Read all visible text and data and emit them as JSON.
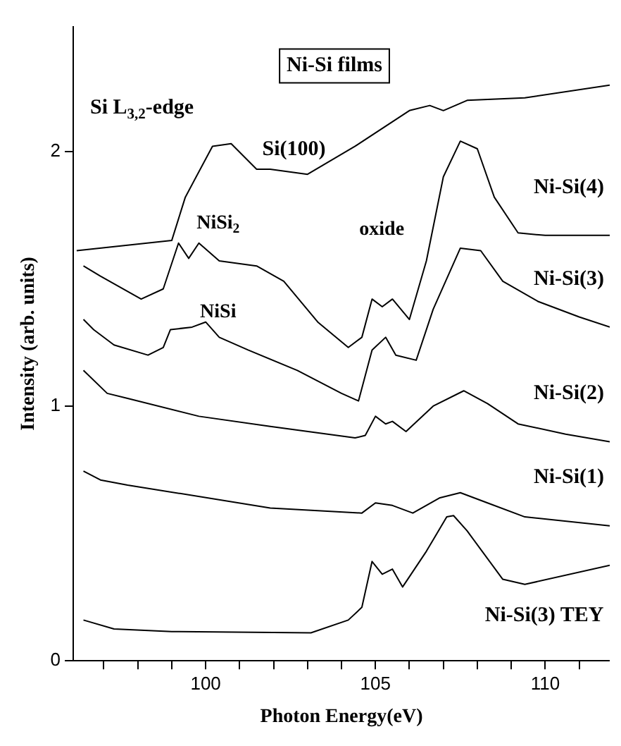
{
  "chart_data": {
    "type": "line",
    "xlabel": "Photon Energy(eV)",
    "ylabel": "Intensity (arb. units)",
    "xlim": [
      96.1,
      111.9
    ],
    "ylim": [
      0,
      2.49
    ],
    "xticks": [
      {
        "value": 97,
        "label": null
      },
      {
        "value": 98,
        "label": null
      },
      {
        "value": 99,
        "label": null
      },
      100,
      {
        "value": 101,
        "label": null
      },
      {
        "value": 102,
        "label": null
      },
      {
        "value": 103,
        "label": null
      },
      {
        "value": 104,
        "label": null
      },
      105,
      {
        "value": 106,
        "label": null
      },
      {
        "value": 107,
        "label": null
      },
      {
        "value": 108,
        "label": null
      },
      {
        "value": 109,
        "label": null
      },
      110,
      {
        "value": 111,
        "label": null
      }
    ],
    "yticks": [
      0,
      1,
      2
    ],
    "grid": false,
    "legend": false,
    "marker": "none",
    "line_style": "solid",
    "annotations": [
      "Ni-Si films",
      "Si L$_{3,2}$-edge",
      "NiSi$_{2}$",
      "NiSi",
      "oxide"
    ],
    "series": [
      {
        "name": "Si(100)",
        "color": "#000000",
        "x": [
          96.2,
          99.0,
          99.4,
          100.2,
          100.75,
          101.5,
          101.9,
          103.0,
          104.4,
          106.0,
          106.6,
          107.0,
          107.7,
          109.4,
          111.9
        ],
        "values": [
          1.61,
          1.65,
          1.82,
          2.02,
          2.03,
          1.93,
          1.93,
          1.91,
          2.02,
          2.16,
          2.18,
          2.16,
          2.2,
          2.21,
          2.26
        ]
      },
      {
        "name": "Ni-Si(4)",
        "color": "#000000",
        "x": [
          96.4,
          96.9,
          98.1,
          98.75,
          99.2,
          99.5,
          99.8,
          100.4,
          101.5,
          102.3,
          103.3,
          104.2,
          104.6,
          104.9,
          105.2,
          105.5,
          106.0,
          106.5,
          107.0,
          107.5,
          108.0,
          108.5,
          109.2,
          110,
          111.9
        ],
        "values": [
          1.55,
          1.51,
          1.42,
          1.46,
          1.64,
          1.58,
          1.64,
          1.57,
          1.55,
          1.49,
          1.33,
          1.23,
          1.27,
          1.42,
          1.39,
          1.42,
          1.34,
          1.57,
          1.9,
          2.04,
          2.01,
          1.82,
          1.68,
          1.67,
          1.67
        ]
      },
      {
        "name": "Ni-Si(3)",
        "color": "#000000",
        "x": [
          96.4,
          96.7,
          97.3,
          98.3,
          98.75,
          98.96,
          99.6,
          100,
          100.4,
          101.25,
          102.7,
          104.0,
          104.5,
          104.9,
          105.3,
          105.6,
          106.2,
          106.7,
          107.5,
          108.1,
          108.75,
          109.8,
          111.0,
          111.9
        ],
        "values": [
          1.34,
          1.3,
          1.24,
          1.2,
          1.23,
          1.3,
          1.31,
          1.33,
          1.27,
          1.22,
          1.14,
          1.05,
          1.02,
          1.22,
          1.27,
          1.2,
          1.18,
          1.38,
          1.62,
          1.61,
          1.49,
          1.41,
          1.35,
          1.31
        ]
      },
      {
        "name": "Ni-Si(2)",
        "color": "#000000",
        "x": [
          96.4,
          97.1,
          97.7,
          99.8,
          101.9,
          104.4,
          104.7,
          105.0,
          105.3,
          105.5,
          105.9,
          106.7,
          107.6,
          108.3,
          109.2,
          110.6,
          111.9
        ],
        "values": [
          1.14,
          1.05,
          1.03,
          0.96,
          0.92,
          0.875,
          0.885,
          0.96,
          0.93,
          0.94,
          0.9,
          1.0,
          1.06,
          1.01,
          0.93,
          0.89,
          0.86
        ]
      },
      {
        "name": "Ni-Si(1)",
        "color": "#000000",
        "x": [
          96.4,
          96.9,
          97.7,
          101.9,
          104.6,
          105.0,
          105.5,
          106.1,
          106.9,
          107.5,
          108.3,
          109.4,
          111.9
        ],
        "values": [
          0.745,
          0.71,
          0.69,
          0.6,
          0.58,
          0.62,
          0.61,
          0.58,
          0.64,
          0.66,
          0.62,
          0.565,
          0.53
        ]
      },
      {
        "name": "Ni-Si(3) TEY",
        "color": "#000000",
        "x": [
          96.4,
          97.3,
          99.0,
          103.1,
          104.2,
          104.6,
          104.9,
          105.2,
          105.5,
          105.8,
          106.5,
          107.1,
          107.3,
          107.7,
          108.75,
          109.4,
          111.9
        ],
        "values": [
          0.16,
          0.125,
          0.115,
          0.11,
          0.16,
          0.21,
          0.39,
          0.34,
          0.36,
          0.29,
          0.43,
          0.565,
          0.57,
          0.51,
          0.32,
          0.3,
          0.375
        ]
      }
    ]
  }
}
